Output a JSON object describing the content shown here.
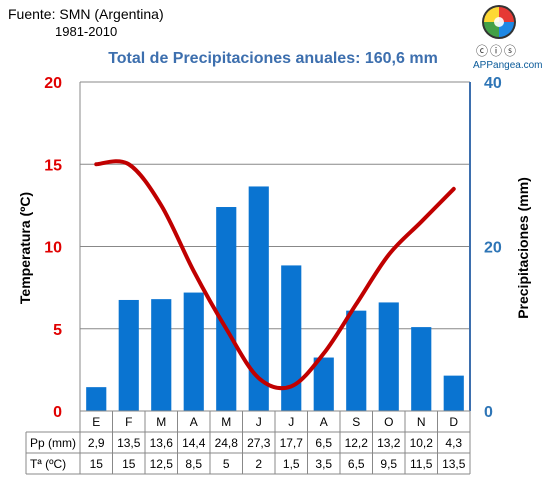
{
  "source": {
    "line1": "Fuente: SMN (Argentina)",
    "line2": "1981-2010"
  },
  "brand": {
    "name": "APPangea.com",
    "license_icons": "cc-by-nc-icons"
  },
  "chart_data": {
    "type": "bar+line",
    "title": "Total de Precipitaciones anuales: 160,6 mm",
    "categories": [
      "E",
      "F",
      "M",
      "A",
      "M",
      "J",
      "J",
      "A",
      "S",
      "O",
      "N",
      "D"
    ],
    "left_axis": {
      "label": "Temperatura (ºC)",
      "ticks": [
        0,
        5,
        10,
        15,
        20
      ],
      "range": [
        0,
        20
      ],
      "color": "#e00000"
    },
    "right_axis": {
      "label": "Precipitaciones (mm)",
      "ticks": [
        0,
        20,
        40
      ],
      "range": [
        0,
        40
      ],
      "color": "#2e75b6"
    },
    "series": [
      {
        "name": "Pp (mm)",
        "kind": "bar",
        "axis": "right",
        "color": "#0a74d1",
        "values": [
          2.9,
          13.5,
          13.6,
          14.4,
          24.8,
          27.3,
          17.7,
          6.5,
          12.2,
          13.2,
          10.2,
          4.3
        ]
      },
      {
        "name": "Tª (ºC)",
        "kind": "line",
        "axis": "left",
        "color": "#c00000",
        "values": [
          15,
          15,
          12.5,
          8.5,
          5,
          2,
          1.5,
          3.5,
          6.5,
          9.5,
          11.5,
          13.5
        ]
      }
    ],
    "table": {
      "rows": [
        {
          "label": "Pp (mm)",
          "cells": [
            "2,9",
            "13,5",
            "13,6",
            "14,4",
            "24,8",
            "27,3",
            "17,7",
            "6,5",
            "12,2",
            "13,2",
            "10,2",
            "4,3"
          ]
        },
        {
          "label": "Tª (ºC)",
          "cells": [
            "15",
            "15",
            "12,5",
            "8,5",
            "5",
            "2",
            "1,5",
            "3,5",
            "6,5",
            "9,5",
            "11,5",
            "13,5"
          ]
        }
      ]
    },
    "grid": true
  }
}
